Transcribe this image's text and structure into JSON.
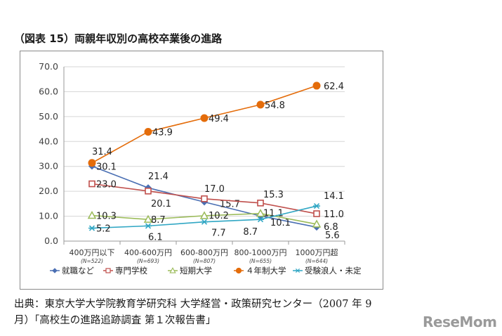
{
  "figure": {
    "title": "（図表 15）両親年収別の高校卒業後の進路"
  },
  "source": {
    "line1": "出典：東京大学大学院教育学研究科 大学経営・政策研究センター（2007 年 9",
    "line2": "月）「高校生の進路追跡調査 第１次報告書」"
  },
  "watermark": "ReseMom",
  "chart_data": {
    "type": "line",
    "title": "（図表 15）両親年収別の高校卒業後の進路",
    "categories": [
      "400万円以下",
      "400-600万円",
      "600-800万円",
      "800-1000万円",
      "1000万円超"
    ],
    "category_notes": [
      "(N=522)",
      "(N=693)",
      "(N=807)",
      "(N=655)",
      "(N=644)"
    ],
    "ylim": [
      0,
      70
    ],
    "yticks": [
      "0.0",
      "10.0",
      "20.0",
      "30.0",
      "40.0",
      "50.0",
      "60.0",
      "70.0"
    ],
    "grid": true,
    "legend_position": "bottom",
    "series": [
      {
        "name": "就職など",
        "marker": "diamond",
        "color": "#4a6fb3",
        "values": [
          30.1,
          21.4,
          15.7,
          10.1,
          5.6
        ],
        "labels": [
          "30.1",
          "21.4",
          "15.7",
          "10.1",
          "5.6"
        ]
      },
      {
        "name": "専門学校",
        "marker": "square-open",
        "color": "#c0504d",
        "values": [
          23.0,
          20.1,
          17.0,
          15.3,
          11.0
        ],
        "labels": [
          "23.0",
          "20.1",
          "17.0",
          "15.3",
          "11.0"
        ]
      },
      {
        "name": "短期大学",
        "marker": "triangle-open",
        "color": "#9bbb59",
        "values": [
          10.3,
          8.7,
          10.2,
          11.1,
          6.8
        ],
        "labels": [
          "10.3",
          "8.7",
          "10.2",
          "11.1",
          "6.8"
        ]
      },
      {
        "name": "４年制大学",
        "marker": "circle",
        "color": "#e46c0a",
        "values": [
          31.4,
          43.9,
          49.4,
          54.8,
          62.4
        ],
        "labels": [
          "31.4",
          "43.9",
          "49.4",
          "54.8",
          "62.4"
        ]
      },
      {
        "name": "受験浪人・未定",
        "marker": "asterisk",
        "color": "#31a7c4",
        "values": [
          5.2,
          6.1,
          7.7,
          8.7,
          14.1
        ],
        "labels": [
          "5.2",
          "6.1",
          "7.7",
          "8.7",
          "14.1"
        ]
      }
    ]
  }
}
